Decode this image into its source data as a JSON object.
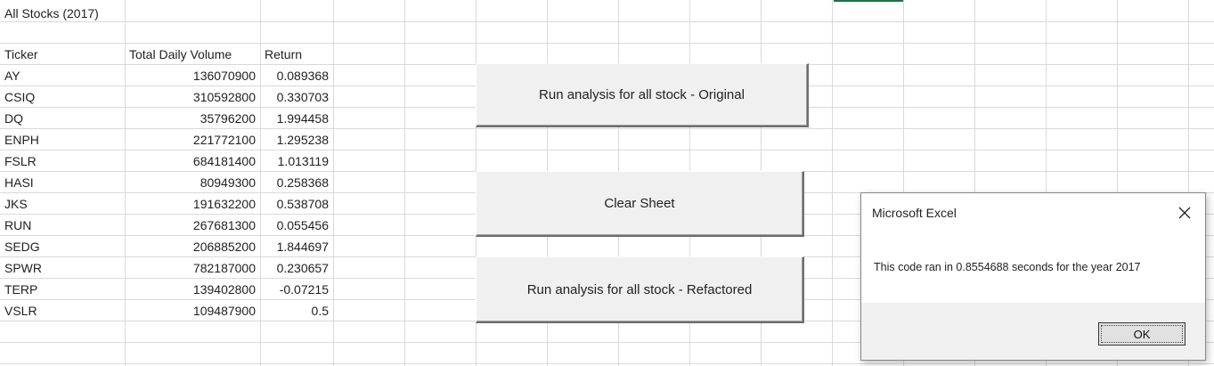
{
  "sheet": {
    "title": "All Stocks (2017)",
    "headers": {
      "ticker": "Ticker",
      "volume": "Total Daily Volume",
      "return": "Return"
    },
    "rows": [
      {
        "ticker": "AY",
        "volume": "136070900",
        "return": "0.089368"
      },
      {
        "ticker": "CSIQ",
        "volume": "310592800",
        "return": "0.330703"
      },
      {
        "ticker": "DQ",
        "volume": "35796200",
        "return": "1.994458"
      },
      {
        "ticker": "ENPH",
        "volume": "221772100",
        "return": "1.295238"
      },
      {
        "ticker": "FSLR",
        "volume": "684181400",
        "return": "1.013119"
      },
      {
        "ticker": "HASI",
        "volume": "80949300",
        "return": "0.258368"
      },
      {
        "ticker": "JKS",
        "volume": "191632200",
        "return": "0.538708"
      },
      {
        "ticker": "RUN",
        "volume": "267681300",
        "return": "0.055456"
      },
      {
        "ticker": "SEDG",
        "volume": "206885200",
        "return": "1.844697"
      },
      {
        "ticker": "SPWR",
        "volume": "782187000",
        "return": "0.230657"
      },
      {
        "ticker": "TERP",
        "volume": "139402800",
        "return": "-0.07215"
      },
      {
        "ticker": "VSLR",
        "volume": "109487900",
        "return": "0.5"
      }
    ]
  },
  "buttons": {
    "run_original": "Run analysis for all stock - Original",
    "clear_sheet": "Clear Sheet",
    "run_refactored": "Run analysis for all stock - Refactored"
  },
  "dialog": {
    "title": "Microsoft Excel",
    "message": "This code ran in 0.8554688 seconds for the year 2017",
    "ok_label": "OK",
    "close_icon": "close-icon"
  },
  "colors": {
    "gridline": "#d9d9d9",
    "button_face": "#f0f0f0",
    "dialog_footer": "#f0f0f0",
    "selection_green": "#1e7145"
  }
}
